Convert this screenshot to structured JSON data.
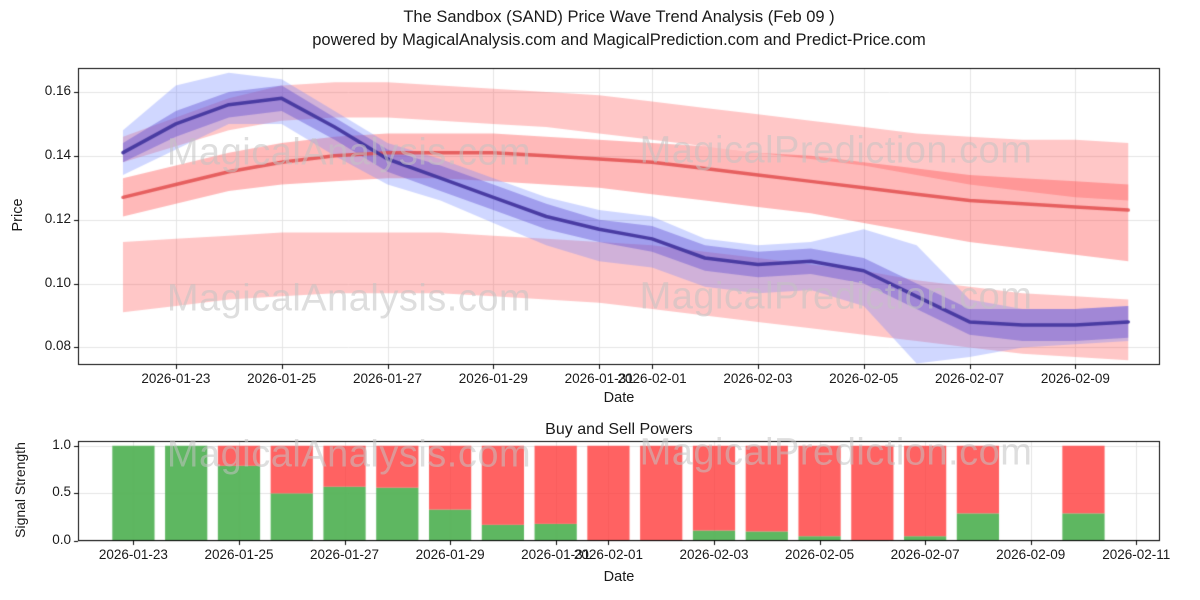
{
  "header": {
    "title": "The Sandbox (SAND) Price Wave Trend Analysis (Feb 09 )",
    "subtitle": "powered by MagicalAnalysis.com and MagicalPrediction.com and Predict-Price.com"
  },
  "watermarks": {
    "analysis": "MagicalAnalysis.com",
    "prediction": "MagicalPrediction.com",
    "color": "#c3c3c3"
  },
  "chart_data": [
    {
      "type": "line",
      "title": "",
      "xlabel": "Date",
      "ylabel": "Price",
      "grid": true,
      "ylim": [
        0.0745,
        0.1675
      ],
      "xlim_days": [
        -1.85,
        18.6
      ],
      "dates": [
        "2026-01-22",
        "2026-01-23",
        "2026-01-24",
        "2026-01-25",
        "2026-01-26",
        "2026-01-27",
        "2026-01-28",
        "2026-01-29",
        "2026-01-30",
        "2026-01-31",
        "2026-02-01",
        "2026-02-02",
        "2026-02-03",
        "2026-02-04",
        "2026-02-05",
        "2026-02-06",
        "2026-02-07",
        "2026-02-08",
        "2026-02-09",
        "2026-02-10"
      ],
      "x_days": [
        -1,
        0,
        1,
        2,
        3,
        4,
        5,
        6,
        7,
        8,
        9,
        10,
        11,
        12,
        13,
        14,
        15,
        16,
        17,
        18
      ],
      "yticks": [
        {
          "label": "0.08",
          "value": 0.08
        },
        {
          "label": "0.10",
          "value": 0.1
        },
        {
          "label": "0.12",
          "value": 0.12
        },
        {
          "label": "0.14",
          "value": 0.14
        },
        {
          "label": "0.16",
          "value": 0.16
        }
      ],
      "xticks": [
        {
          "label": "2026-01-23",
          "day": 0
        },
        {
          "label": "2026-01-25",
          "day": 2
        },
        {
          "label": "2026-01-27",
          "day": 4
        },
        {
          "label": "2026-01-29",
          "day": 6
        },
        {
          "label": "2026-01-31",
          "day": 8
        },
        {
          "label": "2026-02-01",
          "day": 9
        },
        {
          "label": "2026-02-03",
          "day": 11
        },
        {
          "label": "2026-02-05",
          "day": 13
        },
        {
          "label": "2026-02-07",
          "day": 15
        },
        {
          "label": "2026-02-09",
          "day": 17
        }
      ],
      "lines": [
        {
          "name": "red-trend-line",
          "color": "#e04848",
          "alpha": 0.8,
          "width": 3.5,
          "values": [
            0.127,
            0.131,
            0.135,
            0.138,
            0.14,
            0.141,
            0.141,
            0.141,
            0.14,
            0.139,
            0.138,
            0.136,
            0.134,
            0.132,
            0.13,
            0.128,
            0.126,
            0.125,
            0.124,
            0.123
          ]
        },
        {
          "name": "price-trend-line",
          "color": "#45379f",
          "alpha": 0.95,
          "width": 3.5,
          "values": [
            0.141,
            0.15,
            0.156,
            0.158,
            0.149,
            0.139,
            0.133,
            0.127,
            0.121,
            0.117,
            0.114,
            0.108,
            0.106,
            0.107,
            0.104,
            0.096,
            0.088,
            0.087,
            0.087,
            0.088
          ]
        }
      ],
      "bands": [
        {
          "name": "resistance-band-upper",
          "color": "#ff4646",
          "alpha": 0.3,
          "upper": [
            0.146,
            0.152,
            0.158,
            0.162,
            0.163,
            0.163,
            0.162,
            0.161,
            0.16,
            0.159,
            0.157,
            0.155,
            0.153,
            0.151,
            0.149,
            0.147,
            0.146,
            0.145,
            0.145,
            0.144
          ],
          "lower": [
            0.138,
            0.143,
            0.148,
            0.151,
            0.152,
            0.152,
            0.151,
            0.15,
            0.149,
            0.147,
            0.145,
            0.143,
            0.141,
            0.139,
            0.137,
            0.134,
            0.131,
            0.129,
            0.127,
            0.126
          ]
        },
        {
          "name": "resistance-band-middle",
          "color": "#ff4646",
          "alpha": 0.38,
          "upper": [
            0.133,
            0.137,
            0.141,
            0.144,
            0.146,
            0.147,
            0.147,
            0.147,
            0.146,
            0.145,
            0.144,
            0.143,
            0.141,
            0.14,
            0.138,
            0.136,
            0.134,
            0.133,
            0.132,
            0.131
          ],
          "lower": [
            0.121,
            0.125,
            0.129,
            0.131,
            0.132,
            0.133,
            0.133,
            0.132,
            0.131,
            0.13,
            0.128,
            0.126,
            0.124,
            0.122,
            0.119,
            0.116,
            0.113,
            0.111,
            0.109,
            0.107
          ]
        },
        {
          "name": "support-band-lower",
          "color": "#ff4646",
          "alpha": 0.3,
          "upper": [
            0.113,
            0.114,
            0.115,
            0.116,
            0.116,
            0.116,
            0.116,
            0.115,
            0.114,
            0.113,
            0.112,
            0.11,
            0.108,
            0.106,
            0.104,
            0.101,
            0.099,
            0.097,
            0.096,
            0.095
          ],
          "lower": [
            0.091,
            0.093,
            0.095,
            0.096,
            0.097,
            0.097,
            0.097,
            0.096,
            0.095,
            0.094,
            0.092,
            0.09,
            0.088,
            0.086,
            0.084,
            0.082,
            0.08,
            0.078,
            0.077,
            0.076
          ]
        },
        {
          "name": "price-wave-outer-band",
          "color": "#6e82ff",
          "alpha": 0.32,
          "upper": [
            0.148,
            0.162,
            0.166,
            0.164,
            0.154,
            0.144,
            0.139,
            0.133,
            0.127,
            0.123,
            0.121,
            0.114,
            0.112,
            0.113,
            0.117,
            0.112,
            0.095,
            0.092,
            0.092,
            0.093
          ],
          "lower": [
            0.134,
            0.142,
            0.15,
            0.15,
            0.14,
            0.131,
            0.126,
            0.119,
            0.112,
            0.107,
            0.105,
            0.099,
            0.097,
            0.098,
            0.093,
            0.075,
            0.077,
            0.08,
            0.081,
            0.082
          ]
        },
        {
          "name": "price-wave-inner-band",
          "color": "#5a48d2",
          "alpha": 0.4,
          "upper": [
            0.144,
            0.154,
            0.16,
            0.162,
            0.152,
            0.142,
            0.137,
            0.131,
            0.125,
            0.12,
            0.118,
            0.112,
            0.11,
            0.111,
            0.108,
            0.1,
            0.092,
            0.092,
            0.092,
            0.093
          ],
          "lower": [
            0.138,
            0.146,
            0.152,
            0.154,
            0.145,
            0.135,
            0.129,
            0.123,
            0.117,
            0.113,
            0.11,
            0.104,
            0.102,
            0.103,
            0.1,
            0.092,
            0.084,
            0.082,
            0.082,
            0.083
          ]
        }
      ]
    },
    {
      "type": "bar",
      "title": "Buy and Sell Powers",
      "xlabel": "Date",
      "ylabel": "Signal Strength",
      "stacked": true,
      "ylim": [
        0,
        1.05
      ],
      "xlim_days": [
        -1.05,
        19.45
      ],
      "bar_width_days": 0.8,
      "categories": [
        "2026-01-23",
        "2026-01-24",
        "2026-01-25",
        "2026-01-26",
        "2026-01-27",
        "2026-01-28",
        "2026-01-29",
        "2026-01-30",
        "2026-01-31",
        "2026-02-01",
        "2026-02-02",
        "2026-02-03",
        "2026-02-04",
        "2026-02-05",
        "2026-02-06",
        "2026-02-07",
        "2026-02-08",
        "2026-02-09",
        "2026-02-10"
      ],
      "series": [
        {
          "name": "Buy",
          "color": "#4caf50",
          "alpha": 0.9,
          "values": [
            1.0,
            1.0,
            0.79,
            0.5,
            0.57,
            0.56,
            0.33,
            0.17,
            0.18,
            0.0,
            0.0,
            0.11,
            0.1,
            0.05,
            0.0,
            0.05,
            0.29,
            null,
            0.29
          ]
        },
        {
          "name": "Sell",
          "color": "#ff3b3b",
          "alpha": 0.8,
          "values": [
            0.0,
            0.0,
            0.21,
            0.5,
            0.43,
            0.44,
            0.67,
            0.83,
            0.82,
            1.0,
            1.0,
            0.89,
            0.9,
            0.95,
            1.0,
            0.95,
            0.71,
            null,
            0.71
          ]
        }
      ],
      "yticks": [
        {
          "label": "0.0",
          "value": 0
        },
        {
          "label": "0.5",
          "value": 0.5
        },
        {
          "label": "1.0",
          "value": 1
        }
      ],
      "xticks": [
        {
          "label": "2026-01-23",
          "day": 0
        },
        {
          "label": "2026-01-25",
          "day": 2
        },
        {
          "label": "2026-01-27",
          "day": 4
        },
        {
          "label": "2026-01-29",
          "day": 6
        },
        {
          "label": "2026-01-31",
          "day": 8
        },
        {
          "label": "2026-02-01",
          "day": 9
        },
        {
          "label": "2026-02-03",
          "day": 11
        },
        {
          "label": "2026-02-05",
          "day": 13
        },
        {
          "label": "2026-02-07",
          "day": 15
        },
        {
          "label": "2026-02-09",
          "day": 17
        },
        {
          "label": "2026-02-11",
          "day": 19
        }
      ]
    }
  ]
}
